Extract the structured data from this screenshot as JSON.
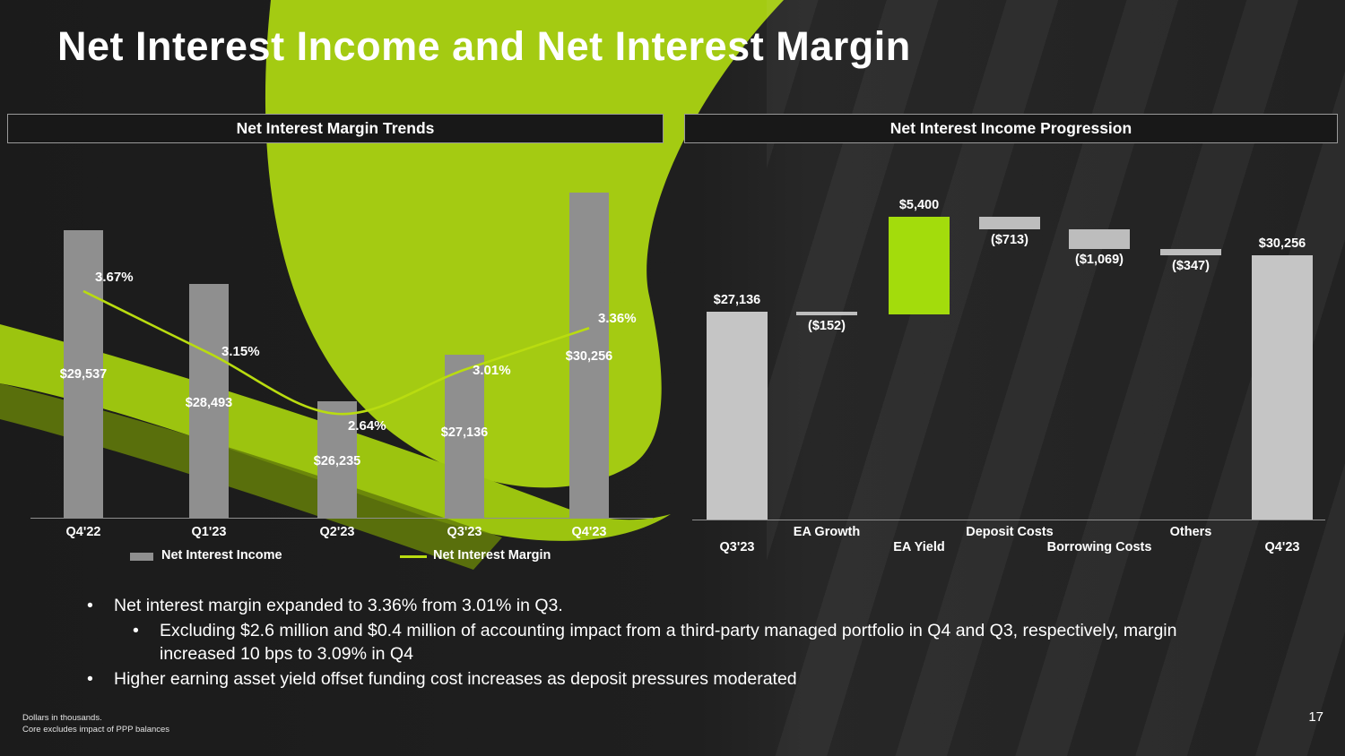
{
  "slide": {
    "title": "Net Interest Income and Net Interest Margin",
    "page_number": "17",
    "footnotes": [
      "Dollars in thousands.",
      "Core excludes impact of PPP balances"
    ],
    "bullets": [
      {
        "level": 1,
        "text": "Net interest margin expanded to 3.36% from 3.01% in Q3."
      },
      {
        "level": 2,
        "text": "Excluding $2.6 million and $0.4 million of accounting impact from a third-party managed portfolio in Q4 and Q3, respectively, margin increased 10 bps to 3.09% in Q4"
      },
      {
        "level": 1,
        "text": "Higher earning asset yield offset funding cost increases as deposit pressures moderated"
      }
    ],
    "theme": {
      "accent_green": "#a4cb12",
      "bright_green": "#a3dc0c",
      "bar_gray": "#8f8f8f",
      "light_bar_gray": "#c5c5c5",
      "background": "#1f1f1f"
    }
  },
  "chart_data": [
    {
      "type": "bar",
      "subtype": "bar-line-combo",
      "title": "Net Interest Margin Trends",
      "categories": [
        "Q4'22",
        "Q1'23",
        "Q2'23",
        "Q3'23",
        "Q4'23"
      ],
      "series": [
        {
          "name": "Net Interest Income",
          "type": "bar",
          "values": [
            29537,
            28493,
            26235,
            27136,
            30256
          ],
          "labels": [
            "$29,537",
            "$28,493",
            "$26,235",
            "$27,136",
            "$30,256"
          ],
          "color": "#8f8f8f"
        },
        {
          "name": "Net Interest Margin",
          "type": "line",
          "values": [
            3.67,
            3.15,
            2.64,
            3.01,
            3.36
          ],
          "labels": [
            "3.67%",
            "3.15%",
            "2.64%",
            "3.01%",
            "3.36%"
          ],
          "color": "#b9dc10"
        }
      ],
      "legend_position": "bottom",
      "value_axis": {
        "hidden": true,
        "approx_min": 24000
      },
      "secondary_axis": {
        "hidden": true
      },
      "grid": false
    },
    {
      "type": "bar",
      "subtype": "waterfall",
      "title": "Net Interest Income Progression",
      "categories": [
        "Q3'23",
        "EA Growth",
        "EA Yield",
        "Deposit Costs",
        "Borrowing Costs",
        "Others",
        "Q4'23"
      ],
      "values": [
        27136,
        -152,
        5400,
        -713,
        -1069,
        -347,
        30256
      ],
      "labels": [
        "$27,136",
        "($152)",
        "$5,400",
        "($713)",
        "($1,069)",
        "($347)",
        "$30,256"
      ],
      "bar_roles": [
        "total",
        "delta",
        "delta",
        "delta",
        "delta",
        "delta",
        "total"
      ],
      "colors": {
        "total": "#c5c5c5",
        "negative": "#bdbdbd",
        "positive": "#a3dc0c"
      },
      "value_axis": {
        "hidden": true
      },
      "grid": false
    }
  ]
}
